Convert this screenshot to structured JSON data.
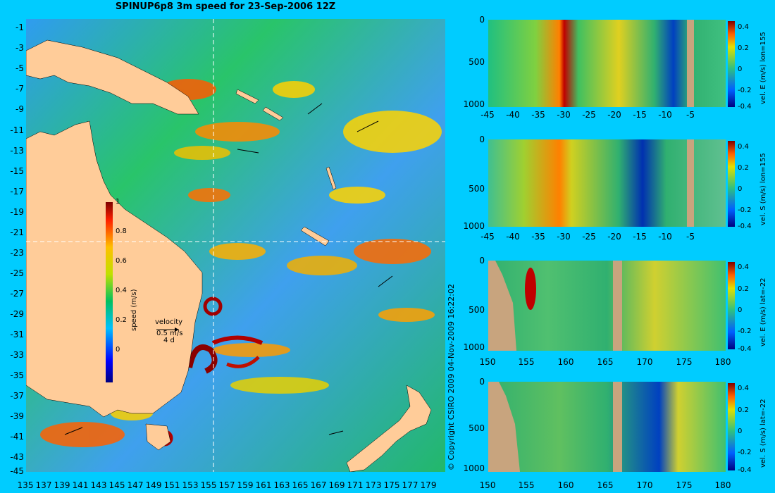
{
  "title": "SPINUP6p8 3m speed for 23-Sep-2006 12Z",
  "map": {
    "lat_ticks": [
      "-1",
      "-3",
      "-5",
      "-7",
      "-9",
      "-11",
      "-13",
      "-15",
      "-17",
      "-19",
      "-21",
      "-23",
      "-25",
      "-27",
      "-29",
      "-31",
      "-33",
      "-35",
      "-37",
      "-39",
      "-41",
      "-43",
      "-45"
    ],
    "lon_ticks": [
      "135",
      "137",
      "139",
      "141",
      "143",
      "145",
      "147",
      "149",
      "151",
      "153",
      "155",
      "157",
      "159",
      "161",
      "163",
      "165",
      "167",
      "169",
      "171",
      "173",
      "175",
      "177",
      "179"
    ],
    "colorbar": {
      "label": "speed (m/s)",
      "ticks": [
        "1",
        "0.8",
        "0.6",
        "0.4",
        "0.2",
        "0"
      ]
    },
    "velocity_legend": {
      "title": "velocity",
      "value": "0.5 m/s",
      "scale": "4 d"
    },
    "section_lon": "155",
    "section_lat": "-22"
  },
  "copyright": "© Copyright CSIRO 2009   04-Nov-2009 16:22:02",
  "panels": [
    {
      "label": "vel. E (m/s) lon=155",
      "x_ticks": [
        "-45",
        "-40",
        "-35",
        "-30",
        "-25",
        "-20",
        "-15",
        "-10",
        "-5"
      ],
      "y_ticks": [
        "0",
        "500",
        "1000"
      ],
      "cbar_ticks": [
        "0.4",
        "0.2",
        "0",
        "-0.2",
        "-0.4"
      ]
    },
    {
      "label": "vel. S (m/s) lon=155",
      "x_ticks": [
        "-45",
        "-40",
        "-35",
        "-30",
        "-25",
        "-20",
        "-15",
        "-10",
        "-5"
      ],
      "y_ticks": [
        "0",
        "500",
        "1000"
      ],
      "cbar_ticks": [
        "0.4",
        "0.2",
        "0",
        "-0.2",
        "-0.4"
      ]
    },
    {
      "label": "vel. E (m/s) lat=-22",
      "x_ticks": [
        "150",
        "155",
        "160",
        "165",
        "170",
        "175",
        "180"
      ],
      "y_ticks": [
        "0",
        "500",
        "1000"
      ],
      "cbar_ticks": [
        "0.4",
        "0.2",
        "0",
        "-0.2",
        "-0.4"
      ]
    },
    {
      "label": "vel. S (m/s) lat=-22",
      "x_ticks": [
        "150",
        "155",
        "160",
        "165",
        "170",
        "175",
        "180"
      ],
      "y_ticks": [
        "0",
        "500",
        "1000"
      ],
      "cbar_ticks": [
        "0.4",
        "0.2",
        "0",
        "-0.2",
        "-0.4"
      ]
    }
  ],
  "colors": {
    "background": "#00ccff",
    "land": "#ffcc99",
    "section_land": "#c8a47e"
  }
}
